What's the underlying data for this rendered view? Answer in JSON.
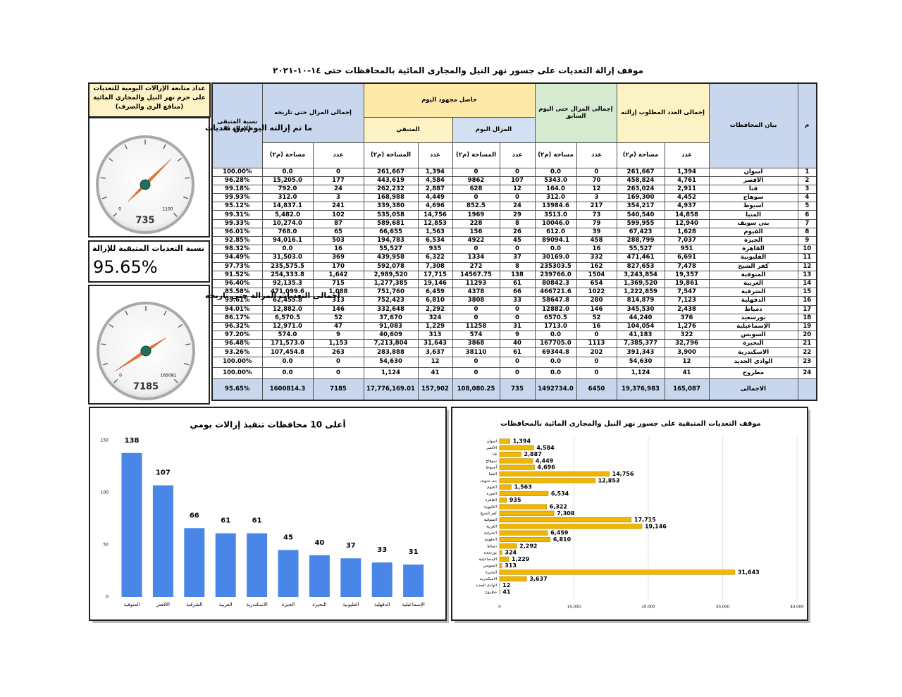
{
  "title": "موقف إزالة التعديات على جسور نهر النيل والمجارى المائية بالمحافظات حتى ١٤-١٠-٢٠٢١",
  "panel_title": "عداد متابعة الإزالات اليومية للتعديات على حرم نهر النيل والمجاري المائية (منافع الري والصرف)",
  "summary": {
    "title": "نسبة التعديات المتبقية للإزالة",
    "value": "95.65%"
  },
  "table": {
    "columns": {
      "no": "م",
      "governorate": "بيان المحافظات",
      "required": "إجمالى العدد المطلوب إزالته",
      "previous": "إجمالى المزال حتى اليوم السابق",
      "today": "حاصل مجهود اليوم",
      "removed_today": "المزال اليوم",
      "remaining": "المتبقي",
      "total_removed": "إجمالى المزال حتى تاريخه",
      "remaining_pct": "نسبة المتبقى للإزالة %"
    },
    "subheaders": [
      "عدد",
      "مساحة (م٢)",
      "عدد",
      "مساحة (م٢)",
      "عدد",
      "المساحة (م٢)",
      "عدد",
      "المساحة (م٢)",
      "عدد",
      "مساحة (م٢)"
    ],
    "rows": [
      [
        "1",
        "اسوان",
        "1,394",
        "261,667",
        "0",
        "0.0",
        "0",
        "0",
        "1,394",
        "261,667",
        "0",
        "0.0",
        "100.00%"
      ],
      [
        "2",
        "الأقصر",
        "4,761",
        "458,824",
        "70",
        "5343.0",
        "107",
        "9862",
        "4,584",
        "443,619",
        "177",
        "15,205.0",
        "96.28%"
      ],
      [
        "3",
        "قنا",
        "2,911",
        "263,024",
        "12",
        "164.0",
        "12",
        "628",
        "2,887",
        "262,232",
        "24",
        "792.0",
        "99.18%"
      ],
      [
        "4",
        "سوهاج",
        "4,452",
        "169,300",
        "3",
        "312.0",
        "0",
        "0",
        "4,449",
        "168,988",
        "3",
        "312.0",
        "99.93%"
      ],
      [
        "5",
        "أسيوط",
        "4,937",
        "354,217",
        "217",
        "13984.6",
        "24",
        "852.5",
        "4,696",
        "339,380",
        "241",
        "14,837.1",
        "95.12%"
      ],
      [
        "6",
        "المنيا",
        "14,858",
        "540,540",
        "73",
        "3513.0",
        "29",
        "1969",
        "14,756",
        "535,058",
        "102",
        "5,482.0",
        "99.31%"
      ],
      [
        "7",
        "بنى سويف",
        "12,940",
        "599,955",
        "79",
        "10046.0",
        "8",
        "228",
        "12,853",
        "589,681",
        "87",
        "10,274.0",
        "99.33%"
      ],
      [
        "8",
        "الفيوم",
        "1,628",
        "67,423",
        "39",
        "612.0",
        "26",
        "156",
        "1,563",
        "66,655",
        "65",
        "768.0",
        "96.01%"
      ],
      [
        "9",
        "الجيزة",
        "7,037",
        "288,799",
        "458",
        "89094.1",
        "45",
        "4922",
        "6,534",
        "194,783",
        "503",
        "94,016.1",
        "92.85%"
      ],
      [
        "10",
        "القاهرة",
        "951",
        "55,527",
        "16",
        "0.0",
        "0",
        "0",
        "935",
        "55,527",
        "16",
        "0.0",
        "98.32%"
      ],
      [
        "11",
        "القليوبية",
        "6,691",
        "471,461",
        "332",
        "30169.0",
        "37",
        "1334",
        "6,322",
        "439,958",
        "369",
        "31,503.0",
        "94.49%"
      ],
      [
        "12",
        "كفر الشيخ",
        "7,478",
        "827,653",
        "162",
        "235303.5",
        "8",
        "272",
        "7,308",
        "592,078",
        "170",
        "235,575.5",
        "97.73%"
      ],
      [
        "13",
        "المنوفية",
        "19,357",
        "3,243,854",
        "1504",
        "239766.0",
        "138",
        "14567.75",
        "17,715",
        "2,989,520",
        "1,642",
        "254,333.8",
        "91.52%"
      ],
      [
        "14",
        "الغربية",
        "19,861",
        "1,369,520",
        "654",
        "80842.3",
        "61",
        "11293",
        "19,146",
        "1,277,385",
        "715",
        "92,135.3",
        "96.40%"
      ],
      [
        "15",
        "الشرقية",
        "7,547",
        "1,222,859",
        "1022",
        "466721.6",
        "66",
        "4378",
        "6,459",
        "751,760",
        "1,088",
        "471,099.6",
        "85.58%"
      ],
      [
        "16",
        "الدقهلية",
        "7,123",
        "814,879",
        "280",
        "58647.8",
        "33",
        "3808",
        "6,810",
        "752,423",
        "313",
        "62,455.8",
        "95.61%"
      ],
      [
        "17",
        "دمياط",
        "2,438",
        "345,530",
        "146",
        "12882.0",
        "0",
        "0",
        "2,292",
        "332,648",
        "146",
        "12,882.0",
        "94.01%"
      ],
      [
        "18",
        "بورسعيد",
        "376",
        "44,240",
        "52",
        "6570.5",
        "0",
        "0",
        "324",
        "37,670",
        "52",
        "6,570.5",
        "86.17%"
      ],
      [
        "19",
        "الإسماعيلية",
        "1,276",
        "104,054",
        "16",
        "1713.0",
        "31",
        "11258",
        "1,229",
        "91,083",
        "47",
        "12,971.0",
        "96.32%"
      ],
      [
        "20",
        "السويس",
        "322",
        "41,183",
        "0",
        "0.0",
        "9",
        "574",
        "313",
        "40,609",
        "9",
        "574.0",
        "97.20%"
      ],
      [
        "21",
        "البحيرة",
        "32,796",
        "7,385,377",
        "1113",
        "167705.0",
        "40",
        "3868",
        "31,643",
        "7,213,804",
        "1,153",
        "171,573.0",
        "96.48%"
      ],
      [
        "22",
        "الاسكندرية",
        "3,900",
        "391,343",
        "202",
        "69344.8",
        "61",
        "38110",
        "3,637",
        "283,888",
        "263",
        "107,454.8",
        "93.26%"
      ],
      [
        "23",
        "الوادى الجديد",
        "12",
        "54,630",
        "0",
        "0.0",
        "0",
        "0",
        "12",
        "54,630",
        "0",
        "0.0",
        "100.00%"
      ],
      [
        "24",
        "مطروح",
        "41",
        "1,124",
        "0",
        "0.0",
        "0",
        "0",
        "41",
        "1,124",
        "0",
        "0.0",
        "100.00%"
      ]
    ],
    "total": {
      "label": "الاجمالى",
      "cells": [
        "165,087",
        "19,376,983",
        "6450",
        "1492734.0",
        "735",
        "108,080.25",
        "157,902",
        "17,776,169.01",
        "7185",
        "1600814.3",
        "95.65%"
      ]
    }
  },
  "chart_data": [
    {
      "type": "gauge",
      "title": "ما تم إزالته اليوم من تعديات",
      "lim": [
        0,
        1100
      ],
      "value": 735,
      "color": "#e8743b"
    },
    {
      "type": "gauge",
      "title": "إجمالى التعديات المزالة حتى تاريخه",
      "lim": [
        0,
        165081
      ],
      "value": 7185,
      "color": "#e8743b"
    },
    {
      "type": "bar",
      "title": "أعلى 10 محافظات تنفيذ إزالات يومي",
      "categories": [
        "المنوفية",
        "الأقصر",
        "الشرقية",
        "الغربية",
        "الاسكندرية",
        "الجيزة",
        "البحيرة",
        "القليوبية",
        "الدقهلية",
        "الإسماعيلية"
      ],
      "values": [
        138,
        107,
        66,
        61,
        61,
        45,
        40,
        37,
        33,
        31
      ],
      "color": "#4a86e8",
      "ylim": [
        0,
        150
      ],
      "yticks": [
        0,
        50,
        100,
        150
      ],
      "grid": false
    },
    {
      "type": "hbar",
      "title": "موقف التعديات المتبقية على جسور نهر النيل والمجارى المائية بالمحافظات",
      "categories": [
        "اسوان",
        "الأقصر",
        "قنا",
        "سوهاج",
        "أسيوط",
        "المنيا",
        "بنى سويف",
        "الفيوم",
        "الجيزة",
        "القاهرة",
        "القليوبية",
        "كفر الشيخ",
        "المنوفية",
        "الغربية",
        "الشرقية",
        "الدقهلية",
        "دمياط",
        "بورسعيد",
        "الإسماعيلية",
        "السويس",
        "البحيرة",
        "الاسكندرية",
        "الوادى الجديد",
        "مطروح"
      ],
      "values": [
        1394,
        4584,
        2887,
        4449,
        4696,
        14756,
        12853,
        1563,
        6534,
        935,
        6322,
        7308,
        17715,
        19146,
        6459,
        6810,
        2292,
        324,
        1229,
        313,
        31643,
        3637,
        12,
        41
      ],
      "value_labels": [
        "1,394",
        "4,584",
        "2,887",
        "4,449",
        "4,696",
        "14,756",
        "12,853",
        "1,563",
        "6,534",
        "935",
        "6,322",
        "7,308",
        "17,715",
        "19,146",
        "6,459",
        "6,810",
        "2,292",
        "324",
        "1,229",
        "313",
        "31,643",
        "3,637",
        "12",
        "41"
      ],
      "color": "#f1b600",
      "xlim": [
        0,
        40000
      ],
      "xticks": [
        0,
        {
          "value": 10000,
          "label": "10,000"
        },
        {
          "value": 20000,
          "label": "20,000"
        },
        {
          "value": 30000,
          "label": "30,000"
        },
        {
          "value": 40000,
          "label": "40,000"
        }
      ],
      "grid": true
    }
  ]
}
